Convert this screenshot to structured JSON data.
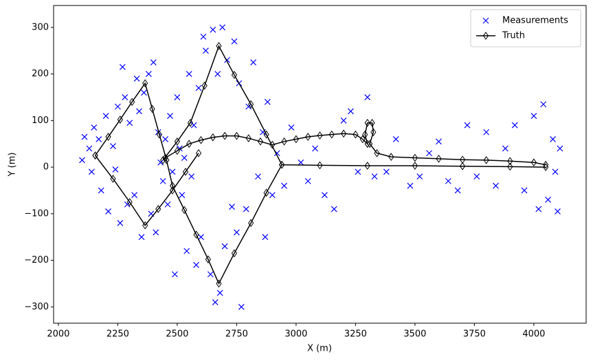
{
  "chart_data": {
    "type": "line",
    "xlabel": "X (m)",
    "ylabel": "Y (m)",
    "xlim": [
      1980,
      4220
    ],
    "ylim": [
      -335,
      347
    ],
    "xticks": [
      2000,
      2250,
      2500,
      2750,
      3000,
      3250,
      3500,
      3750,
      4000
    ],
    "yticks": [
      {
        "value": -300,
        "label": "−300"
      },
      {
        "value": -200,
        "label": "−200"
      },
      {
        "value": -100,
        "label": "−100"
      },
      0,
      100,
      200,
      300
    ],
    "legend": "upper right",
    "series": [
      {
        "name": "Measurements",
        "color": "#0000ff",
        "marker": "x",
        "line": false,
        "x": [
          2100,
          2110,
          2130,
          2140,
          2150,
          2170,
          2180,
          2200,
          2210,
          2230,
          2240,
          2250,
          2260,
          2270,
          2280,
          2290,
          2300,
          2320,
          2330,
          2340,
          2350,
          2360,
          2380,
          2390,
          2400,
          2410,
          2420,
          2430,
          2440,
          2450,
          2460,
          2470,
          2480,
          2490,
          2500,
          2510,
          2520,
          2530,
          2540,
          2550,
          2560,
          2570,
          2580,
          2590,
          2600,
          2610,
          2620,
          2640,
          2650,
          2660,
          2670,
          2680,
          2690,
          2700,
          2710,
          2730,
          2740,
          2750,
          2760,
          2770,
          2790,
          2800,
          2820,
          2840,
          2860,
          2870,
          2880,
          2900,
          2920,
          2950,
          2980,
          3020,
          3050,
          3080,
          3120,
          3160,
          3200,
          3230,
          3260,
          3300,
          3330,
          3380,
          3420,
          3480,
          3520,
          3560,
          3600,
          3640,
          3680,
          3720,
          3760,
          3800,
          3840,
          3880,
          3920,
          3960,
          4000,
          4020,
          4040,
          4060,
          4080,
          4090,
          4100,
          4110
        ],
        "values": [
          15,
          65,
          40,
          -10,
          85,
          60,
          -50,
          110,
          -95,
          45,
          -5,
          130,
          -120,
          215,
          150,
          -80,
          95,
          -60,
          190,
          120,
          -150,
          160,
          200,
          -100,
          225,
          -140,
          75,
          10,
          -30,
          60,
          -80,
          110,
          -10,
          -230,
          150,
          40,
          -60,
          20,
          -180,
          200,
          -20,
          90,
          -210,
          170,
          -150,
          280,
          250,
          -230,
          295,
          -290,
          200,
          -270,
          300,
          -170,
          230,
          -85,
          270,
          -140,
          180,
          -300,
          -90,
          130,
          225,
          -20,
          75,
          -150,
          140,
          -60,
          30,
          -40,
          85,
          10,
          -30,
          40,
          -60,
          -90,
          100,
          120,
          -10,
          150,
          -20,
          -10,
          60,
          -40,
          -20,
          30,
          55,
          -30,
          -50,
          90,
          -20,
          75,
          -40,
          40,
          90,
          -50,
          110,
          -90,
          135,
          -70,
          60,
          -10,
          -95,
          40
        ]
      },
      {
        "name": "Truth",
        "color": "#000000",
        "marker": "diamond",
        "line": true,
        "x": [
          2155,
          2210,
          2260,
          2310,
          2365,
          2395,
          2425,
          2455,
          2480,
          2530,
          2580,
          2630,
          2675,
          2740,
          2810,
          2875,
          2940,
          2875,
          2810,
          2740,
          2675,
          2615,
          2555,
          2500,
          2440,
          null,
          2590,
          2535,
          2480,
          2420,
          2365,
          2300,
          2230,
          2155,
          null,
          2450,
          2500,
          2550,
          2600,
          2650,
          2700,
          2750,
          2800,
          2850,
          2900,
          2950,
          3000,
          3050,
          3100,
          3150,
          3200,
          3250,
          3280,
          3300,
          3290,
          3300,
          3320,
          3325,
          3310,
          3340,
          3400,
          3500,
          3600,
          3700,
          3800,
          3900,
          4000,
          4050,
          null,
          2940,
          3100,
          3300,
          3500,
          3700,
          3900,
          4050
        ],
        "values": [
          25,
          65,
          102,
          140,
          180,
          125,
          70,
          15,
          -40,
          -92,
          -145,
          -198,
          -250,
          -185,
          -120,
          -55,
          5,
          70,
          135,
          198,
          260,
          175,
          95,
          55,
          15,
          null,
          30,
          -10,
          -50,
          -90,
          -125,
          -75,
          -25,
          25,
          null,
          20,
          35,
          50,
          58,
          64,
          67,
          67,
          62,
          55,
          48,
          55,
          60,
          65,
          68,
          70,
          72,
          70,
          60,
          50,
          70,
          95,
          95,
          75,
          50,
          30,
          22,
          20,
          18,
          16,
          15,
          13,
          10,
          5,
          null,
          5,
          4,
          3,
          3,
          2,
          1,
          0
        ]
      }
    ]
  }
}
